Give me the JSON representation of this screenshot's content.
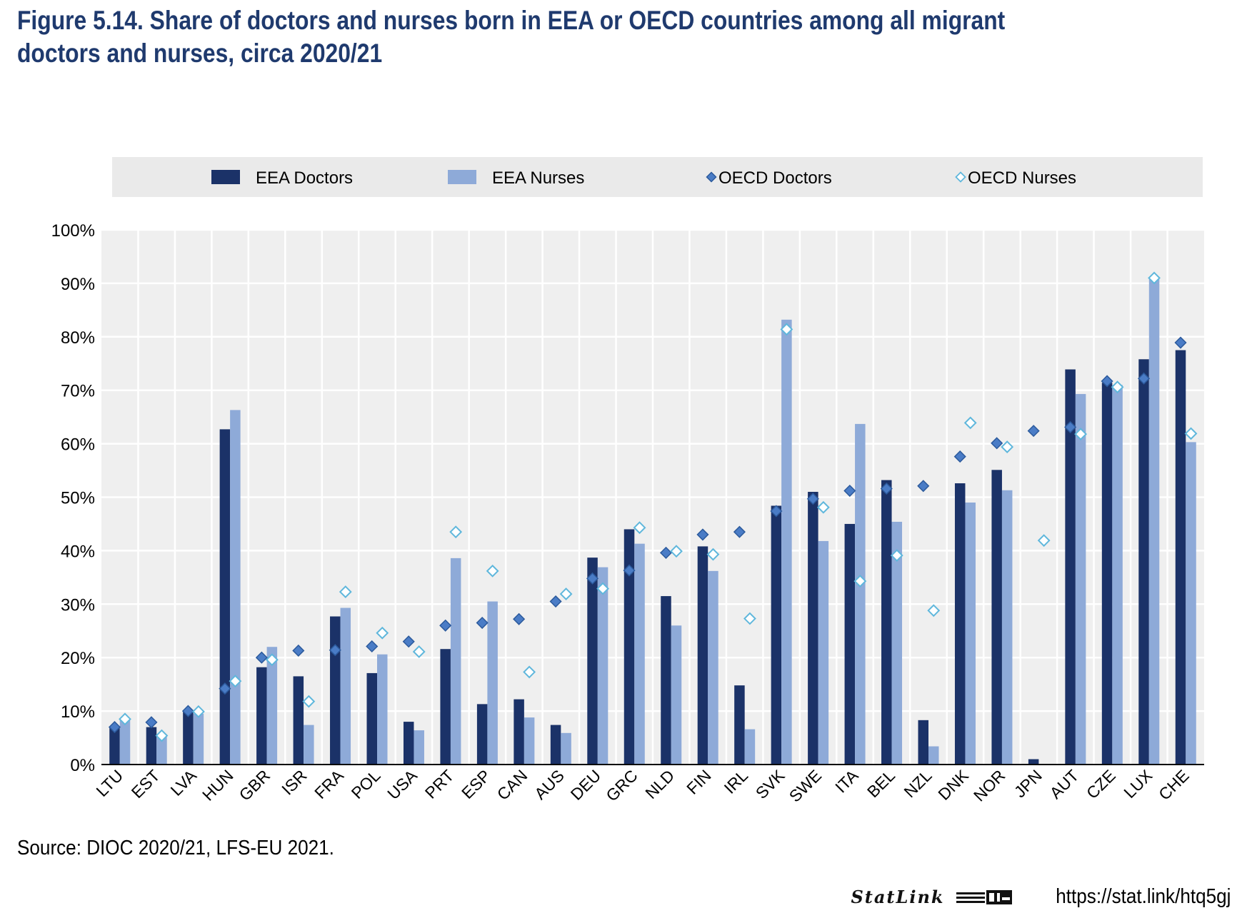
{
  "title_line1": "Figure 5.14. Share of doctors and nurses born in EEA or OECD countries among all migrant",
  "title_line2": "doctors and nurses, circa 2020/21",
  "source": "Source: DIOC 2020/21, LFS-EU 2021.",
  "statlink": {
    "label": "StatLink",
    "url": "https://stat.link/htq5gj"
  },
  "colors": {
    "eea_doctors": "#1b3268",
    "eea_nurses": "#8eaad8",
    "oecd_doctors_fill": "#4a7cc6",
    "oecd_doctors_stroke": "#2c5a9c",
    "oecd_nurses_stroke": "#5fb7dc",
    "plot_bg": "#efefef",
    "legend_bg": "#eaeaea"
  },
  "chart_data": {
    "type": "bar",
    "title": "Share of doctors and nurses born in EEA or OECD countries among all migrant doctors and nurses, circa 2020/21",
    "xlabel": "",
    "ylabel": "",
    "ylim": [
      0,
      100
    ],
    "y_ticks": [
      0,
      10,
      20,
      30,
      40,
      50,
      60,
      70,
      80,
      90,
      100
    ],
    "y_tick_labels": [
      "0%",
      "10%",
      "20%",
      "30%",
      "40%",
      "50%",
      "60%",
      "70%",
      "80%",
      "90%",
      "100%"
    ],
    "grid": true,
    "legend_position": "top",
    "categories": [
      "LTU",
      "EST",
      "LVA",
      "HUN",
      "GBR",
      "ISR",
      "FRA",
      "POL",
      "USA",
      "PRT",
      "ESP",
      "CAN",
      "AUS",
      "DEU",
      "GRC",
      "NLD",
      "FIN",
      "IRL",
      "SVK",
      "SWE",
      "ITA",
      "BEL",
      "NZL",
      "DNK",
      "NOR",
      "JPN",
      "AUT",
      "CZE",
      "LUX",
      "CHE"
    ],
    "series": [
      {
        "name": "EEA Doctors",
        "kind": "bar",
        "values": [
          7,
          7,
          10,
          62.7,
          18.2,
          16.5,
          27.7,
          17.1,
          8,
          21.6,
          11.3,
          12.2,
          7.4,
          38.7,
          44,
          31.5,
          40.8,
          14.8,
          48.4,
          51,
          45,
          53.2,
          8.3,
          52.6,
          55.1,
          1,
          73.9,
          71.4,
          75.8,
          77.5
        ]
      },
      {
        "name": "EEA Nurses",
        "kind": "bar",
        "values": [
          8.5,
          5.2,
          9.5,
          66.3,
          22,
          7.4,
          29.3,
          20.6,
          6.4,
          38.6,
          30.5,
          8.8,
          5.9,
          36.9,
          41.3,
          26,
          36.2,
          6.6,
          83.2,
          41.8,
          63.7,
          45.4,
          3.4,
          49,
          51.3,
          null,
          69.3,
          71,
          90.8,
          60.3
        ]
      },
      {
        "name": "OECD Doctors",
        "kind": "marker",
        "values": [
          7,
          7.9,
          10,
          14.2,
          20,
          21.3,
          21.4,
          22.1,
          23,
          26,
          26.5,
          27.2,
          30.5,
          34.8,
          36.3,
          39.6,
          43,
          43.5,
          47.4,
          49.7,
          51.2,
          51.6,
          52.1,
          57.6,
          60.1,
          62.4,
          63.1,
          71.7,
          72.2,
          78.9
        ]
      },
      {
        "name": "OECD Nurses",
        "kind": "marker",
        "values": [
          8.5,
          5.4,
          9.9,
          15.6,
          19.6,
          11.8,
          32.3,
          24.6,
          21.1,
          43.5,
          36.2,
          17.3,
          31.9,
          32.9,
          44.3,
          39.9,
          39.3,
          27.3,
          81.4,
          48.1,
          34.3,
          39.1,
          28.8,
          63.9,
          59.4,
          41.9,
          61.8,
          70.6,
          91,
          61.9
        ]
      }
    ]
  }
}
